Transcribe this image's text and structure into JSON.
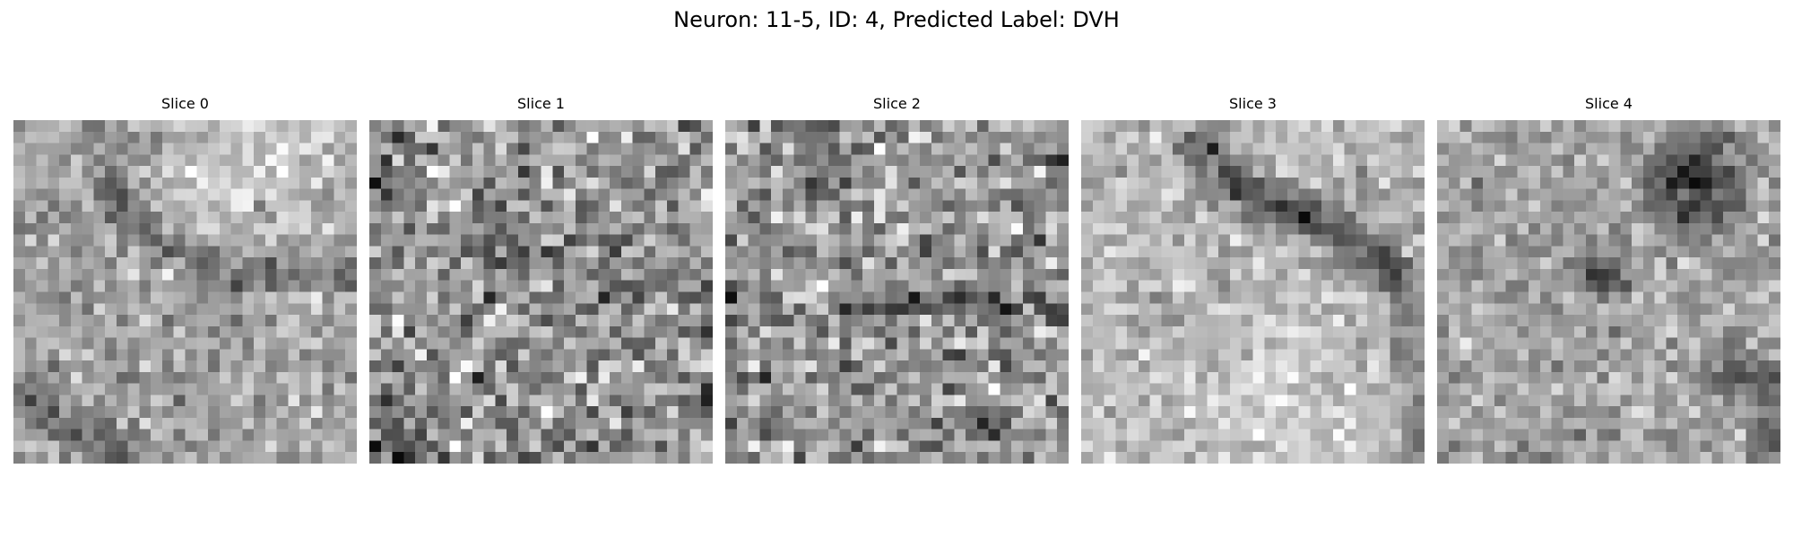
{
  "figure": {
    "title": "Neuron: 11-5, ID: 4, Predicted Label: DVH"
  },
  "panels": [
    {
      "title": "Slice 0",
      "image": "grayscale-em-patch"
    },
    {
      "title": "Slice 1",
      "image": "grayscale-em-patch"
    },
    {
      "title": "Slice 2",
      "image": "grayscale-em-patch"
    },
    {
      "title": "Slice 3",
      "image": "grayscale-em-patch"
    },
    {
      "title": "Slice 4",
      "image": "grayscale-em-patch"
    }
  ]
}
